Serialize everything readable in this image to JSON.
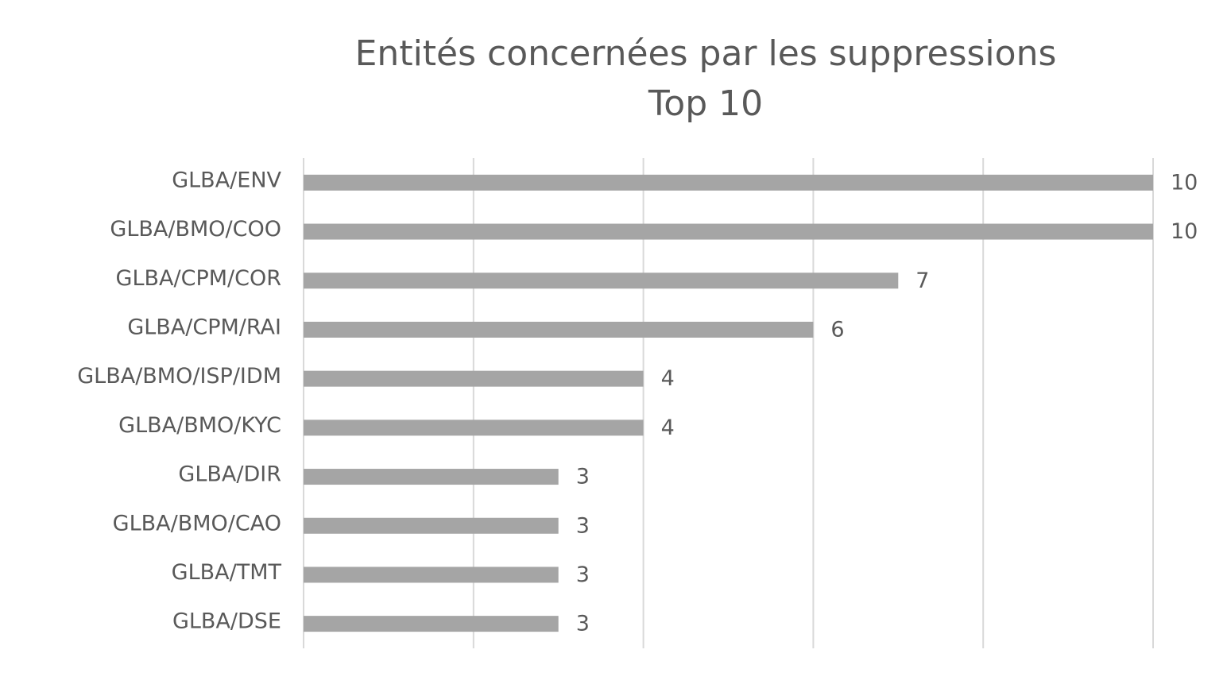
{
  "chart_data": {
    "type": "bar",
    "orientation": "horizontal",
    "title": "Entités concernées par les suppressions",
    "subtitle": "Top 10",
    "categories": [
      "GLBA/ENV",
      "GLBA/BMO/COO",
      "GLBA/CPM/COR",
      "GLBA/CPM/RAI",
      "GLBA/BMO/ISP/IDM",
      "GLBA/BMO/KYC",
      "GLBA/DIR",
      "GLBA/BMO/CAO",
      "GLBA/TMT",
      "GLBA/DSE"
    ],
    "values": [
      10,
      10,
      7,
      6,
      4,
      4,
      3,
      3,
      3,
      3
    ],
    "color": "#a5a5a5",
    "xlim": [
      0,
      10
    ],
    "xticks": [
      0,
      2,
      4,
      6,
      8,
      10
    ],
    "grid": true
  }
}
